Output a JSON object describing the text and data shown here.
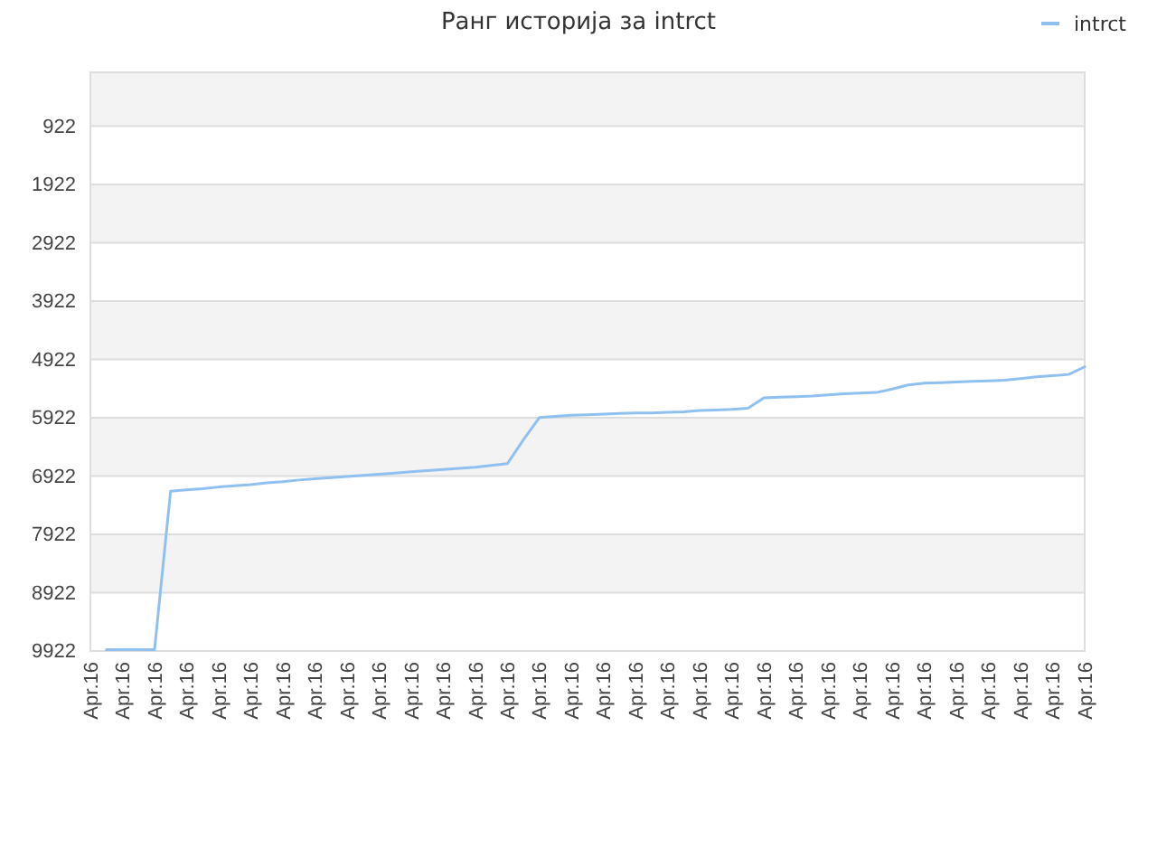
{
  "chart_data": {
    "type": "line",
    "title": "Ранг историја за intrct",
    "categories": [
      "Apr.16",
      null,
      "Apr.16",
      null,
      "Apr.16",
      null,
      "Apr.16",
      null,
      "Apr.16",
      null,
      "Apr.16",
      null,
      "Apr.16",
      null,
      "Apr.16",
      null,
      "Apr.16",
      null,
      "Apr.16",
      null,
      "Apr.16",
      null,
      "Apr.16",
      null,
      "Apr.16",
      null,
      "Apr.16",
      null,
      "Apr.16",
      null,
      "Apr.16",
      null,
      "Apr.16",
      null,
      "Apr.16",
      null,
      "Apr.16",
      null,
      "Apr.16",
      null,
      "Apr.16",
      null,
      "Apr.16",
      null,
      "Apr.16",
      null,
      "Apr.16",
      null,
      "Apr.16",
      null,
      "Apr.16",
      null,
      "Apr.16",
      null,
      "Apr.16",
      null,
      "Apr.16",
      null,
      "Apr.16",
      null,
      "Apr.16",
      null,
      "Apr.16"
    ],
    "series": [
      {
        "name": "intrct",
        "color": "#90c0f0",
        "values": [
          null,
          9900,
          9900,
          9900,
          9900,
          7180,
          7160,
          7140,
          7110,
          7090,
          7070,
          7040,
          7020,
          6990,
          6970,
          6950,
          6930,
          6910,
          6890,
          6870,
          6850,
          6830,
          6810,
          6790,
          6770,
          6740,
          6710,
          6300,
          5920,
          5900,
          5880,
          5870,
          5860,
          5850,
          5840,
          5840,
          5830,
          5820,
          5800,
          5790,
          5780,
          5760,
          5580,
          5570,
          5560,
          5550,
          5530,
          5510,
          5500,
          5490,
          5430,
          5360,
          5330,
          5320,
          5310,
          5300,
          5290,
          5280,
          5250,
          5220,
          5200,
          5180,
          5050
        ]
      }
    ],
    "ylim": [
      9922,
      0
    ],
    "yticks": [
      922,
      1922,
      2922,
      3922,
      4922,
      5922,
      6922,
      7922,
      8922,
      9922
    ],
    "grid": "y",
    "legend": "top right",
    "marker": "none",
    "line_style": "solid"
  }
}
